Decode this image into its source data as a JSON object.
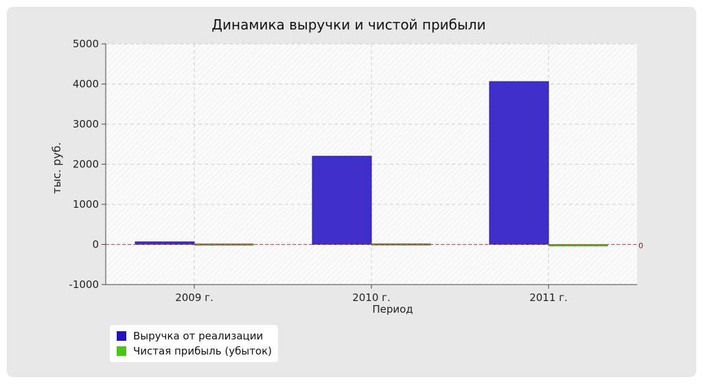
{
  "chart_data": {
    "type": "bar",
    "title": "Динамика выручки и чистой прибыли",
    "xlabel": "Период",
    "ylabel": "тыс. руб.",
    "categories": [
      "2009 г.",
      "2010 г.",
      "2011 г."
    ],
    "series": [
      {
        "name": "Выручка от реализации",
        "color": "#3f2ec9",
        "values": [
          65,
          2200,
          4060
        ]
      },
      {
        "name": "Чистая прибыль (убыток)",
        "color": "#4cc51a",
        "values": [
          15,
          18,
          -25
        ]
      }
    ],
    "ylim": [
      -1000,
      5000
    ],
    "yticks": [
      "5000",
      "4000",
      "3000",
      "2000",
      "1000",
      "0",
      "-1000"
    ],
    "ytick_values": [
      5000,
      4000,
      3000,
      2000,
      1000,
      0,
      -1000
    ],
    "zero_line_label": "0",
    "grid": true,
    "legend_placement": "bottom-left"
  }
}
